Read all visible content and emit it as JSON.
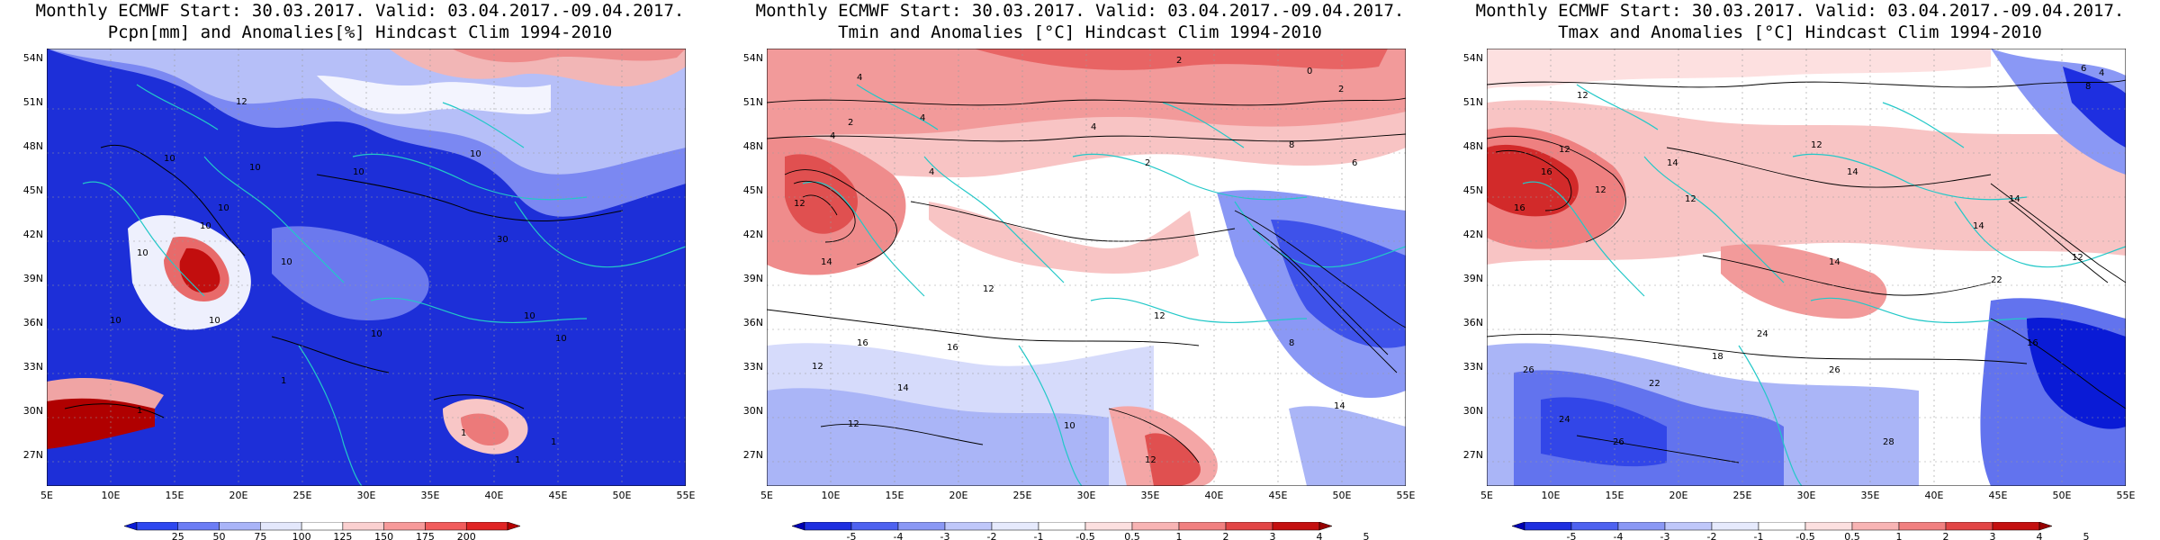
{
  "panels": [
    {
      "title_line1": "Monthly ECMWF Start: 30.03.2017. Valid: 03.04.2017.-09.04.2017.",
      "title_line2": "Pcpn[mm] and Anomalies[%] Hindcast Clim 1994-2010",
      "colorbar_ticks": [
        "25",
        "50",
        "75",
        "100",
        "125",
        "150",
        "175",
        "200"
      ],
      "colorbar_colors": [
        "#0a1bd6",
        "#2e48f0",
        "#6c7df5",
        "#a9b4f8",
        "#e4e8fc",
        "#ffffff",
        "#fbd0d0",
        "#f79a9a",
        "#f15c5c",
        "#e02424",
        "#b40000"
      ],
      "contour_labels": [
        "12",
        "10",
        "10",
        "10",
        "10",
        "10",
        "10",
        "10",
        "10",
        "10",
        "30",
        "10",
        "10",
        "10",
        "10",
        "1",
        "1",
        "1",
        "1",
        "1"
      ]
    },
    {
      "title_line1": "Monthly ECMWF Start: 30.03.2017. Valid: 03.04.2017.-09.04.2017.",
      "title_line2": "Tmin and Anomalies [°C] Hindcast Clim 1994-2010",
      "colorbar_ticks": [
        "-5",
        "-4",
        "-3",
        "-2",
        "-1",
        "-0.5",
        "0.5",
        "1",
        "2",
        "3",
        "4",
        "5"
      ],
      "colorbar_colors": [
        "#0000b4",
        "#1e2fe0",
        "#4e62f0",
        "#8a98f5",
        "#bfc7fa",
        "#e6eafd",
        "#ffffff",
        "#fde0e0",
        "#f8b4b4",
        "#f18080",
        "#e24646",
        "#c41010",
        "#960000"
      ],
      "contour_labels": [
        "2",
        "0",
        "2",
        "4",
        "2",
        "4",
        "4",
        "2",
        "8",
        "6",
        "4",
        "4",
        "12",
        "14",
        "16",
        "12",
        "16",
        "12",
        "14",
        "12",
        "10",
        "12",
        "8",
        "14",
        "12"
      ]
    },
    {
      "title_line1": "Monthly ECMWF Start: 30.03.2017. Valid: 03.04.2017.-09.04.2017.",
      "title_line2": "Tmax and Anomalies [°C] Hindcast Clim 1994-2010",
      "colorbar_ticks": [
        "-5",
        "-4",
        "-3",
        "-2",
        "-1",
        "-0.5",
        "0.5",
        "1",
        "2",
        "3",
        "4",
        "5"
      ],
      "colorbar_colors": [
        "#0000b4",
        "#1e2fe0",
        "#4e62f0",
        "#8a98f5",
        "#bfc7fa",
        "#e6eafd",
        "#ffffff",
        "#fde0e0",
        "#f8b4b4",
        "#f18080",
        "#e24646",
        "#c41010",
        "#960000"
      ],
      "contour_labels": [
        "6",
        "4",
        "8",
        "12",
        "12",
        "14",
        "16",
        "12",
        "12",
        "14",
        "16",
        "12",
        "14",
        "12",
        "16",
        "14",
        "14",
        "22",
        "26",
        "18",
        "22",
        "24",
        "26",
        "24",
        "26",
        "28"
      ]
    }
  ],
  "axes": {
    "lat_labels": [
      "54N",
      "51N",
      "48N",
      "45N",
      "42N",
      "39N",
      "36N",
      "33N",
      "30N",
      "27N"
    ],
    "lon_labels": [
      "5E",
      "10E",
      "15E",
      "20E",
      "25E",
      "30E",
      "35E",
      "40E",
      "45E",
      "50E",
      "55E"
    ]
  }
}
